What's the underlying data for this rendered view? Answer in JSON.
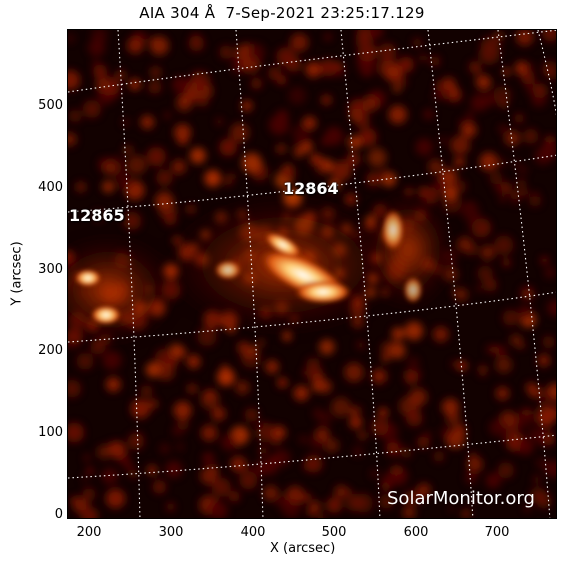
{
  "title": "AIA 304 Å  7-Sep-2021 23:25:17.129",
  "axes": {
    "x_label": "X (arcsec)",
    "y_label": "Y (arcsec)",
    "x_ticks": [
      "200",
      "300",
      "400",
      "500",
      "600",
      "700"
    ],
    "y_ticks": [
      "0",
      "100",
      "200",
      "300",
      "400",
      "500"
    ],
    "x_range": [
      175,
      775
    ],
    "y_range": [
      -5,
      595
    ]
  },
  "regions": [
    {
      "id": "12864",
      "label": "12864"
    },
    {
      "id": "12865",
      "label": "12865"
    }
  ],
  "watermark": "SolarMonitor.org",
  "colors": {
    "background": "#ffffff",
    "image_dark": "#0d0000",
    "image_mid": "#b02800",
    "image_bright": "#ffb060",
    "grid": "#ffffff"
  }
}
